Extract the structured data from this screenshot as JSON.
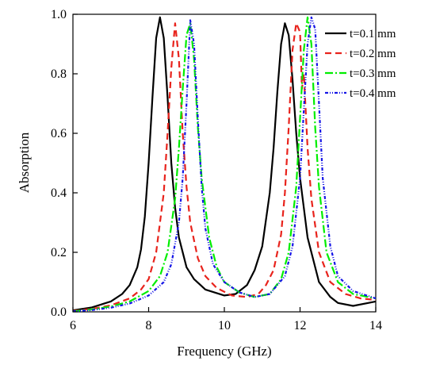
{
  "chart_data": {
    "type": "line",
    "xlabel": "Frequency (GHz)",
    "ylabel": "Absorption",
    "xlim": [
      6,
      14
    ],
    "ylim": [
      0,
      1.0
    ],
    "xticks": [
      6,
      8,
      10,
      12,
      14
    ],
    "xtick_labels": [
      "6",
      "8",
      "10",
      "12",
      "14"
    ],
    "yticks": [
      0,
      0.2,
      0.4,
      0.6,
      0.8,
      1.0
    ],
    "ytick_labels": [
      "0.0",
      "0.2",
      "0.4",
      "0.6",
      "0.8",
      "1.0"
    ],
    "grid": false,
    "legend_position": "top-right",
    "series": [
      {
        "name": "t=0.1 mm",
        "color": "#000000",
        "dash": "solid",
        "x": [
          6.0,
          6.5,
          7.0,
          7.3,
          7.5,
          7.7,
          7.8,
          7.9,
          8.0,
          8.1,
          8.2,
          8.3,
          8.4,
          8.5,
          8.6,
          8.7,
          8.8,
          9.0,
          9.2,
          9.5,
          10.0,
          10.3,
          10.6,
          10.8,
          11.0,
          11.2,
          11.3,
          11.4,
          11.5,
          11.6,
          11.7,
          11.8,
          11.9,
          12.0,
          12.2,
          12.5,
          12.8,
          13.0,
          13.4,
          13.8,
          14.0
        ],
        "y": [
          0.005,
          0.015,
          0.035,
          0.06,
          0.09,
          0.15,
          0.21,
          0.32,
          0.5,
          0.72,
          0.92,
          0.99,
          0.92,
          0.72,
          0.5,
          0.35,
          0.25,
          0.15,
          0.11,
          0.075,
          0.055,
          0.06,
          0.09,
          0.14,
          0.22,
          0.4,
          0.55,
          0.74,
          0.9,
          0.97,
          0.93,
          0.78,
          0.6,
          0.45,
          0.25,
          0.1,
          0.05,
          0.03,
          0.02,
          0.03,
          0.035
        ]
      },
      {
        "name": "t=0.2 mm",
        "color": "#e8231c",
        "dash": "8,5",
        "x": [
          6.0,
          6.5,
          7.0,
          7.5,
          7.8,
          8.0,
          8.2,
          8.4,
          8.5,
          8.6,
          8.7,
          8.8,
          8.9,
          9.0,
          9.1,
          9.3,
          9.5,
          9.8,
          10.2,
          10.6,
          10.9,
          11.1,
          11.3,
          11.5,
          11.6,
          11.7,
          11.8,
          11.9,
          12.0,
          12.05,
          12.1,
          12.2,
          12.3,
          12.5,
          12.8,
          13.2,
          13.6,
          14.0
        ],
        "y": [
          0.003,
          0.01,
          0.022,
          0.045,
          0.075,
          0.11,
          0.2,
          0.4,
          0.6,
          0.82,
          0.97,
          0.85,
          0.6,
          0.42,
          0.3,
          0.18,
          0.12,
          0.08,
          0.055,
          0.05,
          0.06,
          0.09,
          0.14,
          0.26,
          0.4,
          0.62,
          0.88,
          0.97,
          0.94,
          0.75,
          0.8,
          0.55,
          0.38,
          0.2,
          0.1,
          0.06,
          0.045,
          0.04
        ]
      },
      {
        "name": "t=0.3 mm",
        "color": "#00ee00",
        "dash": "10,3,2,3",
        "x": [
          6.0,
          6.5,
          7.0,
          7.5,
          8.0,
          8.3,
          8.5,
          8.7,
          8.8,
          8.9,
          9.0,
          9.1,
          9.2,
          9.3,
          9.4,
          9.6,
          9.8,
          10.0,
          10.4,
          10.8,
          11.2,
          11.5,
          11.7,
          11.9,
          12.0,
          12.1,
          12.2,
          12.3,
          12.4,
          12.5,
          12.7,
          13.0,
          13.4,
          14.0
        ],
        "y": [
          0.002,
          0.008,
          0.018,
          0.035,
          0.07,
          0.12,
          0.2,
          0.38,
          0.55,
          0.75,
          0.93,
          0.97,
          0.85,
          0.62,
          0.45,
          0.25,
          0.15,
          0.1,
          0.065,
          0.05,
          0.06,
          0.11,
          0.2,
          0.42,
          0.65,
          0.88,
          0.99,
          0.9,
          0.62,
          0.42,
          0.2,
          0.1,
          0.06,
          0.045
        ]
      },
      {
        "name": "t=0.4 mm",
        "color": "#1414e6",
        "dash": "4,2,1,2,1,2",
        "x": [
          6.0,
          6.5,
          7.0,
          7.5,
          8.0,
          8.4,
          8.6,
          8.8,
          8.9,
          9.0,
          9.1,
          9.2,
          9.3,
          9.4,
          9.5,
          9.7,
          10.0,
          10.4,
          10.8,
          11.2,
          11.6,
          11.8,
          12.0,
          12.1,
          12.2,
          12.3,
          12.4,
          12.5,
          12.6,
          12.8,
          13.0,
          13.4,
          14.0
        ],
        "y": [
          0.002,
          0.006,
          0.014,
          0.028,
          0.055,
          0.1,
          0.16,
          0.3,
          0.45,
          0.7,
          0.98,
          0.9,
          0.65,
          0.42,
          0.28,
          0.16,
          0.1,
          0.065,
          0.05,
          0.06,
          0.12,
          0.22,
          0.45,
          0.68,
          0.9,
          0.99,
          0.95,
          0.7,
          0.45,
          0.22,
          0.12,
          0.07,
          0.045
        ]
      }
    ]
  }
}
